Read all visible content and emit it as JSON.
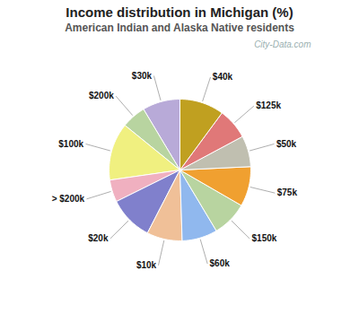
{
  "chart_data": {
    "type": "pie",
    "title": "Income distribution in Michigan (%)",
    "subtitle": "American Indian and Alaska Native residents",
    "categories": [
      "$30k",
      "$200k",
      "$100k",
      "> $200k",
      "$20k",
      "$10k",
      "$60k",
      "$150k",
      "$75k",
      "$50k",
      "$125k",
      "$40k"
    ],
    "values": [
      8.5,
      5.5,
      13.0,
      5.0,
      10.0,
      8.0,
      8.0,
      8.0,
      9.0,
      7.0,
      7.0,
      10.0
    ],
    "colors": [
      "#b8aad8",
      "#b8d4a0",
      "#f0f080",
      "#f0b0c0",
      "#8080cc",
      "#f0c098",
      "#90b8ee",
      "#b8d4a0",
      "#f0a030",
      "#c0bfb0",
      "#e07878",
      "#c0a020"
    ],
    "annotations": [
      "City-Data.com"
    ]
  }
}
